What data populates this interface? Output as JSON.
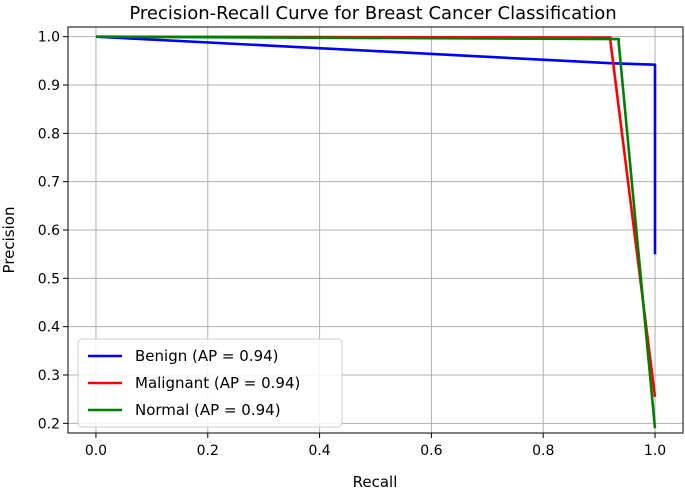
{
  "chart_data": {
    "type": "line",
    "title": "Precision-Recall Curve for Breast Cancer Classification",
    "xlabel": "Recall",
    "ylabel": "Precision",
    "xlim": [
      -0.05,
      1.05
    ],
    "ylim": [
      0.18,
      1.02
    ],
    "xticks": [
      0.0,
      0.2,
      0.4,
      0.6,
      0.8,
      1.0
    ],
    "yticks": [
      0.2,
      0.3,
      0.4,
      0.5,
      0.6,
      0.7,
      0.8,
      0.9,
      1.0
    ],
    "grid": true,
    "legend_position": "lower-left",
    "series": [
      {
        "name": "Benign (AP = 0.94)",
        "color": "#0000ff",
        "x": [
          0.0,
          0.925,
          1.0,
          1.0
        ],
        "y": [
          1.0,
          0.945,
          0.942,
          0.55
        ]
      },
      {
        "name": "Malignant (AP = 0.94)",
        "color": "#ff0000",
        "x": [
          0.0,
          0.92,
          0.92,
          1.0
        ],
        "y": [
          1.0,
          0.998,
          0.993,
          0.255
        ]
      },
      {
        "name": "Normal (AP = 0.94)",
        "color": "#008000",
        "x": [
          0.0,
          0.935,
          0.935,
          1.0
        ],
        "y": [
          1.0,
          0.995,
          0.988,
          0.19
        ]
      }
    ]
  }
}
